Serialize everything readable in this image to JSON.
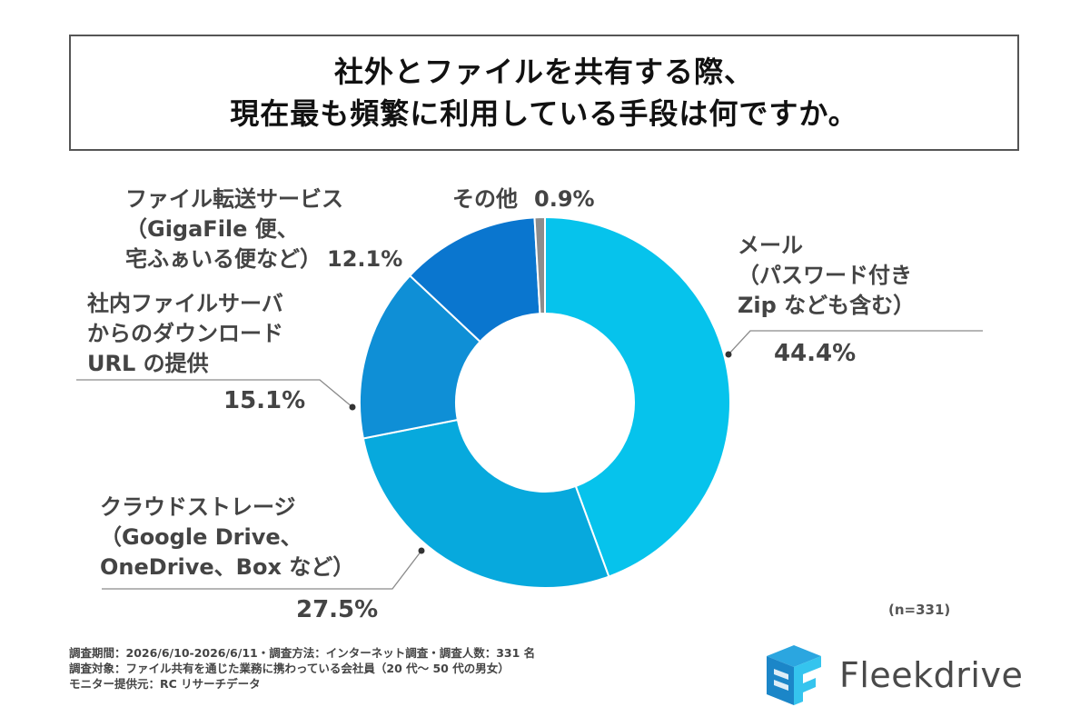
{
  "title": {
    "line1": "社外とファイルを共有する際、",
    "line2": "現在最も頻繁に利用している手段は何ですか。"
  },
  "colors": {
    "mail": "#06c3ec",
    "cloud": "#07a9dd",
    "server": "#0f8fd6",
    "transfer": "#0a76cf",
    "other": "#8c8c8c"
  },
  "chart_data": {
    "type": "pie",
    "variant": "donut",
    "start": "12 o'clock, clockwise",
    "slices": [
      {
        "key": "mail",
        "label_lines": [
          "メール",
          "（パスワード付き",
          "Zip なども含む）"
        ],
        "value": 44.4,
        "value_text": "44.4%"
      },
      {
        "key": "cloud",
        "label_lines": [
          "クラウドストレージ",
          "（Google Drive、",
          "OneDrive、Box など）"
        ],
        "value": 27.5,
        "value_text": "27.5%"
      },
      {
        "key": "server",
        "label_lines": [
          "社内ファイルサーバ",
          "からのダウンロード",
          "URL の提供"
        ],
        "value": 15.1,
        "value_text": "15.1%"
      },
      {
        "key": "transfer",
        "label_lines": [
          "ファイル転送サービス",
          "（GigaFile 便、",
          "宅ふぁいる便など）"
        ],
        "value": 12.1,
        "value_text": "12.1%"
      },
      {
        "key": "other",
        "label_lines": [
          "その他"
        ],
        "value": 0.9,
        "value_text": "0.9%"
      }
    ],
    "n_note": "(n=331)"
  },
  "footnotes": [
    "調査期間：2026/6/10-2026/6/11・調査方法：インターネット調査・調査人数：331 名",
    "調査対象：ファイル共有を通じた業務に携わっている会社員（20 代〜 50 代の男女）",
    "モニター提供元：RC リサーチデータ"
  ],
  "logo": {
    "text": "Fleekdrive",
    "icon": "fleekdrive-logo-icon"
  }
}
